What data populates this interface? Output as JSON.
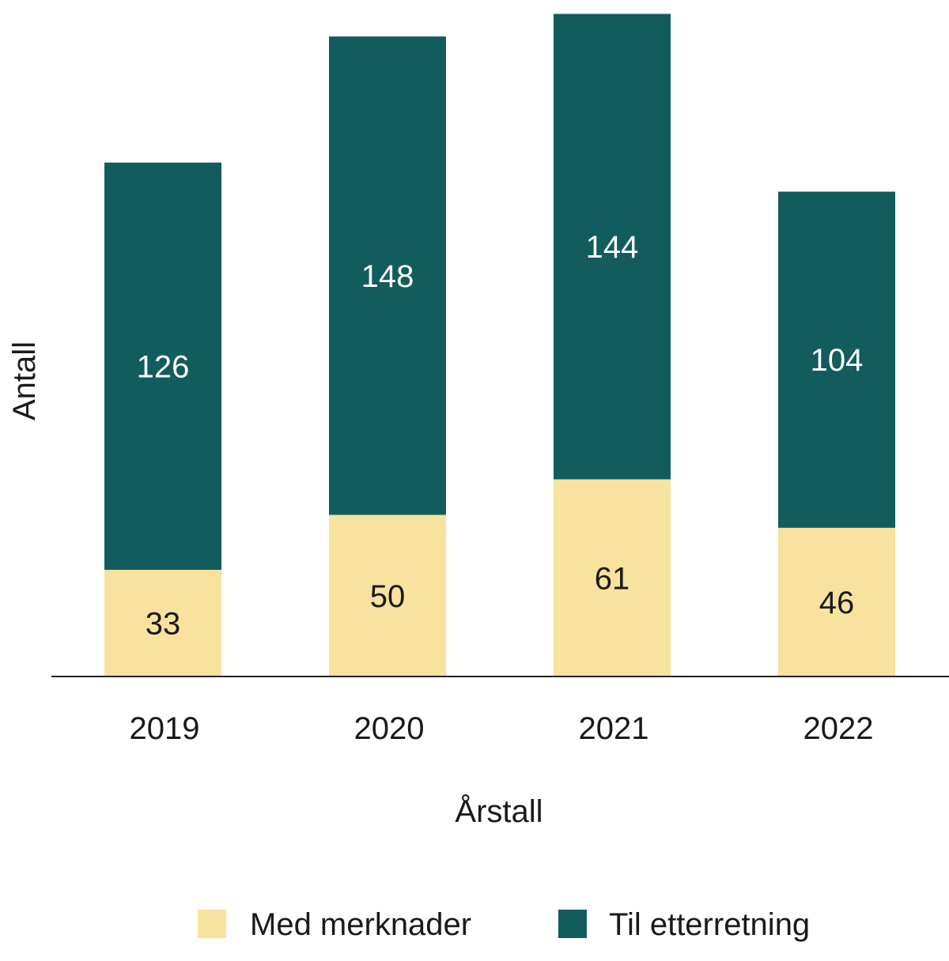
{
  "chart_data": {
    "type": "bar",
    "stacked": true,
    "categories": [
      "2019",
      "2020",
      "2021",
      "2022"
    ],
    "series": [
      {
        "name": "Med merknader",
        "color": "#f7e39d",
        "label_color": "#1a1a1a",
        "values": [
          33,
          50,
          61,
          46
        ]
      },
      {
        "name": "Til etterretning",
        "color": "#125c5d",
        "label_color": "#ffffff",
        "values": [
          126,
          148,
          144,
          104
        ]
      }
    ],
    "title": "",
    "xlabel": "Årstall",
    "ylabel": "Antall",
    "ylim": [
      0,
      205
    ],
    "legend_position": "bottom",
    "grid": false
  }
}
